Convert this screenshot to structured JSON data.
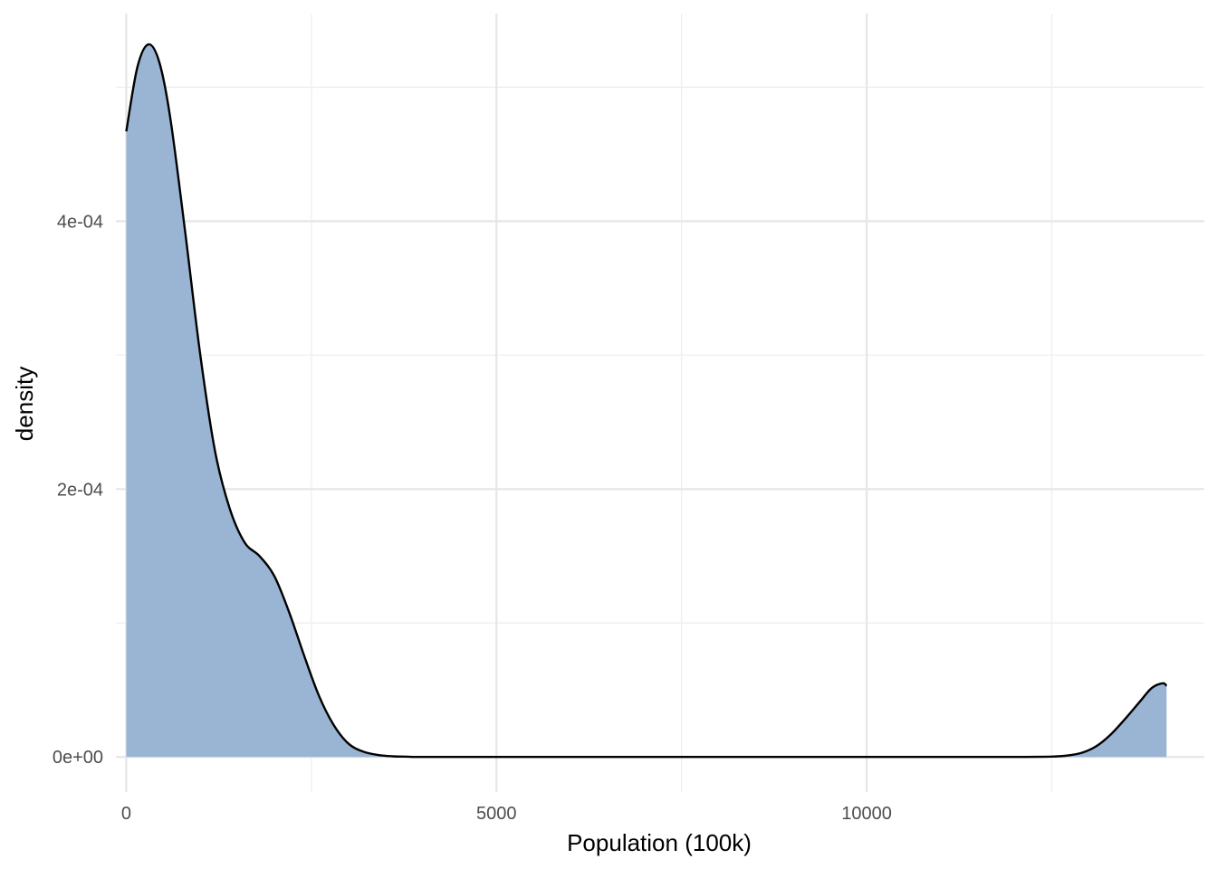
{
  "chart_data": {
    "type": "area",
    "xlabel": "Population (100k)",
    "ylabel": "density",
    "xlim": [
      -140,
      14560
    ],
    "ylim": [
      -2.62e-05,
      0.000555
    ],
    "x_ticks": [
      0,
      5000,
      10000
    ],
    "x_tick_labels": [
      "0",
      "5000",
      "10000"
    ],
    "x_minor_ticks": [
      2500,
      7500,
      12500
    ],
    "y_ticks": [
      0,
      0.0002,
      0.0004
    ],
    "y_tick_labels": [
      "0e+00",
      "2e-04",
      "4e-04"
    ],
    "y_minor_ticks": [
      0.0001,
      0.0003,
      0.0005
    ],
    "grid": true,
    "legend": "none",
    "colors": {
      "fill": "#9ab5d4",
      "line": "#000000",
      "grid": "#e6e6e6"
    },
    "series": [
      {
        "x": [
          0,
          150,
          300,
          450,
          600,
          800,
          1000,
          1200,
          1400,
          1600,
          1800,
          2000,
          2200,
          2400,
          2600,
          2800,
          3000,
          3200,
          3400,
          3600,
          3800,
          4000,
          5000,
          7000,
          9000,
          11000,
          12000,
          12500,
          12700,
          12900,
          13100,
          13300,
          13500,
          13700,
          13850,
          14000,
          14050
        ],
        "y": [
          0.000467,
          0.000515,
          0.000532,
          0.000518,
          0.000475,
          0.00039,
          0.0003,
          0.000228,
          0.000185,
          0.00016,
          0.00015,
          0.000135,
          0.000108,
          7.6e-05,
          4.6e-05,
          2.4e-05,
          1e-05,
          4e-06,
          1.5e-06,
          5e-07,
          2e-07,
          0,
          0,
          0,
          0,
          0,
          0,
          3e-07,
          1e-06,
          3e-06,
          8e-06,
          1.7e-05,
          2.9e-05,
          4.2e-05,
          5.15e-05,
          5.5e-05,
          5.3e-05
        ]
      }
    ]
  }
}
